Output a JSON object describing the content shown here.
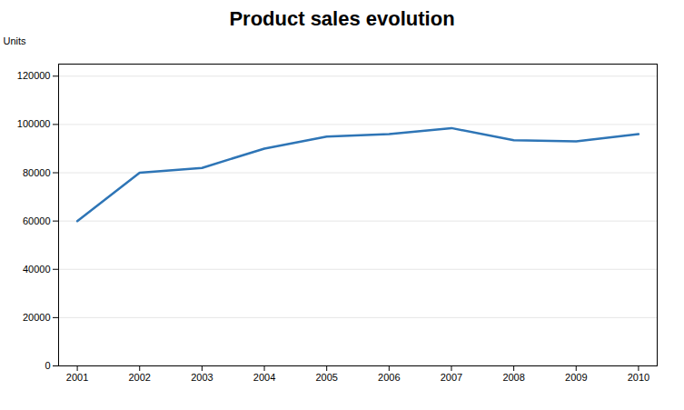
{
  "chart_data": {
    "type": "line",
    "title": "Product sales evolution",
    "ylabel": "Units",
    "x": [
      2001,
      2002,
      2003,
      2004,
      2005,
      2006,
      2007,
      2008,
      2009,
      2010
    ],
    "values": [
      60000,
      80000,
      82000,
      90000,
      95000,
      96000,
      98500,
      93500,
      93000,
      96000
    ],
    "color": "#2E75B6",
    "xlim": [
      2000.7,
      2010.3
    ],
    "xticks": [
      2001,
      2002,
      2003,
      2004,
      2005,
      2006,
      2007,
      2008,
      2009,
      2010
    ],
    "ylim": [
      0,
      125000
    ],
    "yticks": [
      0,
      20000,
      40000,
      60000,
      80000,
      100000,
      120000
    ],
    "grid": true
  }
}
